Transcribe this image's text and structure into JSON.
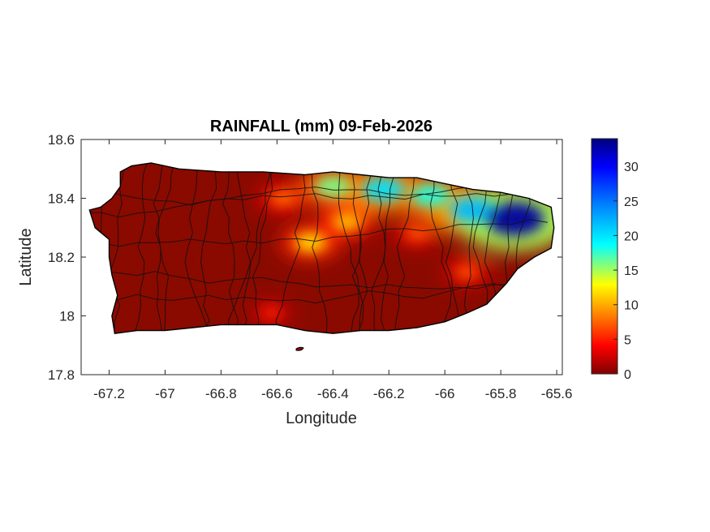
{
  "chart_data": {
    "type": "heatmap",
    "title": "RAINFALL (mm) 09-Feb-2026",
    "xlabel": "Longitude",
    "ylabel": "Latitude",
    "xlim": [
      -67.3,
      -65.58
    ],
    "ylim": [
      17.8,
      18.6
    ],
    "xticks": [
      -67.2,
      -67,
      -66.8,
      -66.6,
      -66.4,
      -66.2,
      -66,
      -65.8,
      -65.6
    ],
    "xtick_labels": [
      "-67.2",
      "-67",
      "-66.8",
      "-66.6",
      "-66.4",
      "-66.2",
      "-66",
      "-65.8",
      "-65.6"
    ],
    "yticks": [
      17.8,
      18,
      18.2,
      18.4,
      18.6
    ],
    "ytick_labels": [
      "17.8",
      "18",
      "18.2",
      "18.4",
      "18.6"
    ],
    "colorbar": {
      "min": 0,
      "max": 34,
      "ticks": [
        0,
        5,
        10,
        15,
        20,
        25,
        30
      ],
      "tick_labels": [
        "0",
        "5",
        "10",
        "15",
        "20",
        "25",
        "30"
      ],
      "colormap": [
        "#800000",
        "#ff0000",
        "#ff8000",
        "#ffff00",
        "#00ffff",
        "#0080ff",
        "#0000ff",
        "#000080"
      ]
    },
    "grid": false,
    "island_outline": [
      [
        -67.27,
        18.36
      ],
      [
        -67.23,
        18.37
      ],
      [
        -67.19,
        18.4
      ],
      [
        -67.16,
        18.44
      ],
      [
        -67.16,
        18.49
      ],
      [
        -67.12,
        18.51
      ],
      [
        -67.05,
        18.52
      ],
      [
        -66.95,
        18.5
      ],
      [
        -66.8,
        18.49
      ],
      [
        -66.65,
        18.49
      ],
      [
        -66.5,
        18.48
      ],
      [
        -66.4,
        18.49
      ],
      [
        -66.3,
        18.48
      ],
      [
        -66.2,
        18.47
      ],
      [
        -66.1,
        18.47
      ],
      [
        -66.0,
        18.45
      ],
      [
        -65.9,
        18.43
      ],
      [
        -65.8,
        18.42
      ],
      [
        -65.7,
        18.4
      ],
      [
        -65.62,
        18.37
      ],
      [
        -65.61,
        18.3
      ],
      [
        -65.62,
        18.23
      ],
      [
        -65.68,
        18.2
      ],
      [
        -65.74,
        18.16
      ],
      [
        -65.78,
        18.11
      ],
      [
        -65.85,
        18.04
      ],
      [
        -65.92,
        18.01
      ],
      [
        -66.0,
        17.98
      ],
      [
        -66.1,
        17.96
      ],
      [
        -66.2,
        17.95
      ],
      [
        -66.3,
        17.95
      ],
      [
        -66.4,
        17.94
      ],
      [
        -66.5,
        17.95
      ],
      [
        -66.6,
        17.97
      ],
      [
        -66.7,
        17.97
      ],
      [
        -66.8,
        17.97
      ],
      [
        -66.9,
        17.96
      ],
      [
        -67.0,
        17.95
      ],
      [
        -67.1,
        17.95
      ],
      [
        -67.18,
        17.94
      ],
      [
        -67.19,
        18.0
      ],
      [
        -67.17,
        18.07
      ],
      [
        -67.19,
        18.14
      ],
      [
        -67.2,
        18.2
      ],
      [
        -67.2,
        18.26
      ],
      [
        -67.25,
        18.3
      ]
    ],
    "rainfall_features": [
      {
        "lon": -65.75,
        "lat": 18.33,
        "value": 33
      },
      {
        "lon": -65.9,
        "lat": 18.36,
        "value": 22
      },
      {
        "lon": -66.05,
        "lat": 18.41,
        "value": 18
      },
      {
        "lon": -66.22,
        "lat": 18.43,
        "value": 20
      },
      {
        "lon": -66.4,
        "lat": 18.44,
        "value": 16
      },
      {
        "lon": -66.48,
        "lat": 18.25,
        "value": 12
      },
      {
        "lon": -66.35,
        "lat": 18.32,
        "value": 11
      },
      {
        "lon": -66.58,
        "lat": 18.4,
        "value": 8
      },
      {
        "lon": -66.1,
        "lat": 18.28,
        "value": 7
      },
      {
        "lon": -65.92,
        "lat": 18.15,
        "value": 7
      },
      {
        "lon": -66.62,
        "lat": 18.01,
        "value": 5
      }
    ]
  }
}
